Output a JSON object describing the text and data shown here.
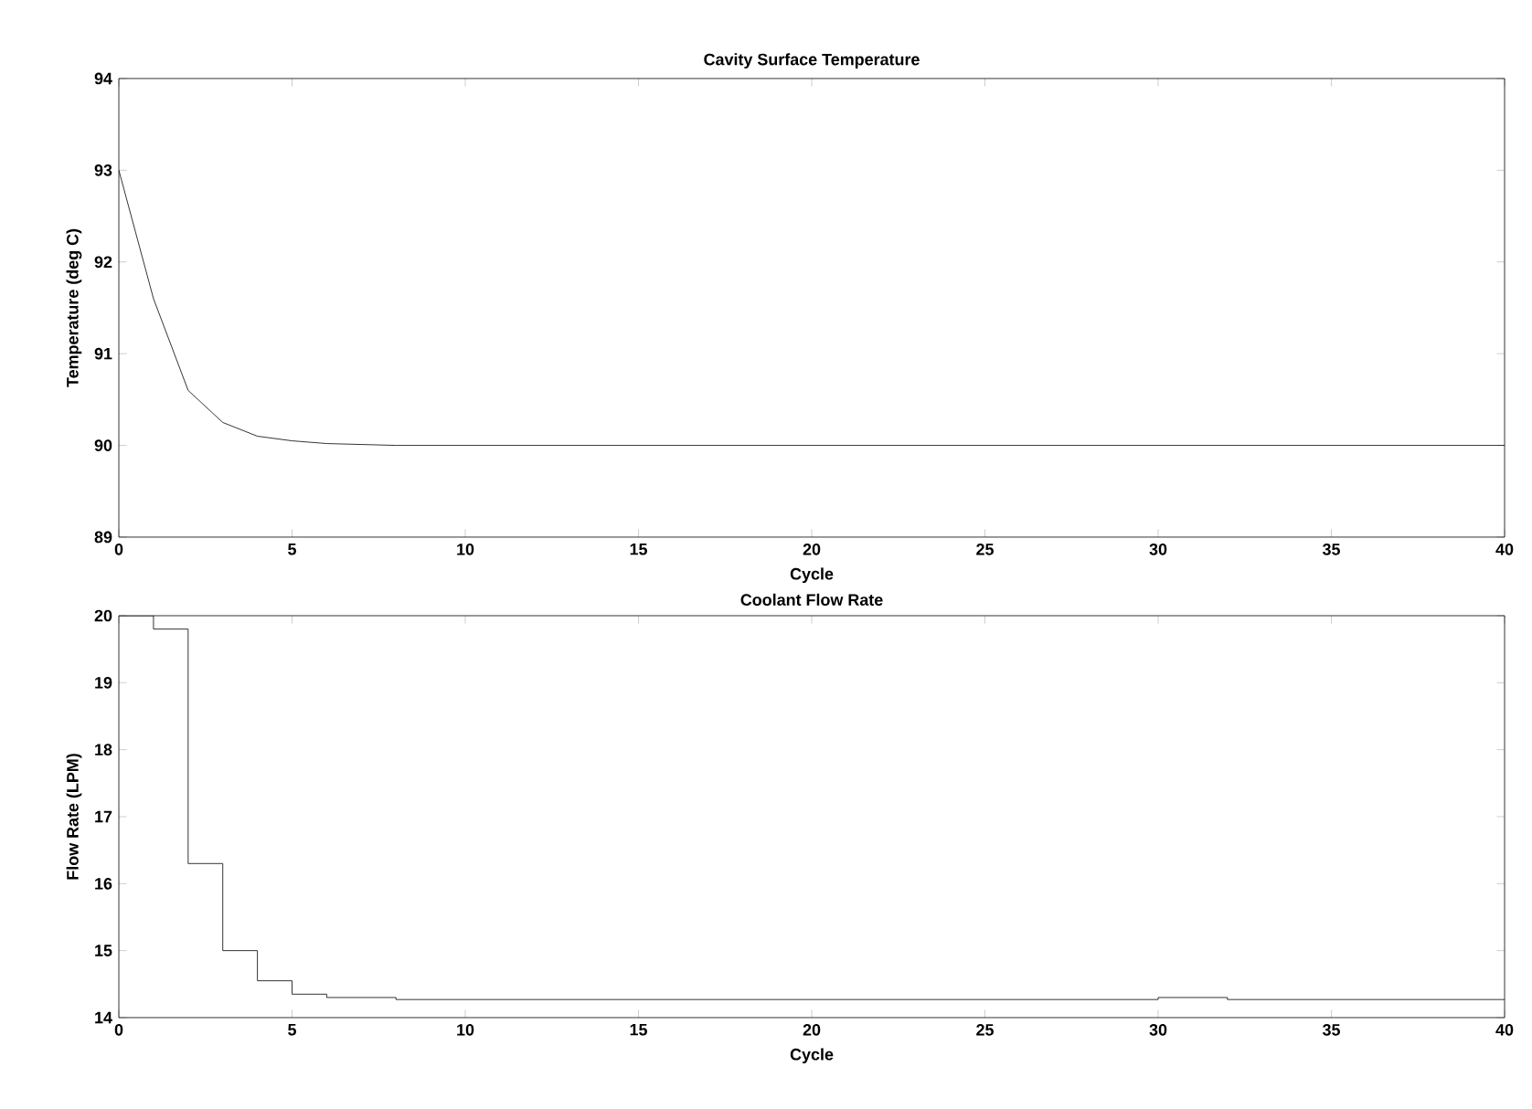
{
  "chart_data": [
    {
      "type": "line",
      "title": "Cavity Surface Temperature",
      "xlabel": "Cycle",
      "ylabel": "Temperature (deg C)",
      "xlim": [
        0,
        40
      ],
      "ylim": [
        89,
        94
      ],
      "xticks": [
        0,
        5,
        10,
        15,
        20,
        25,
        30,
        35,
        40
      ],
      "yticks": [
        89,
        90,
        91,
        92,
        93,
        94
      ],
      "x": [
        0,
        1,
        2,
        3,
        4,
        5,
        6,
        8,
        10,
        20,
        30,
        40
      ],
      "series": [
        {
          "color": "#000000",
          "values": [
            93,
            91.6,
            90.6,
            90.25,
            90.1,
            90.05,
            90.02,
            90,
            90,
            90,
            90,
            90
          ]
        }
      ]
    },
    {
      "type": "step",
      "title": "Coolant Flow Rate",
      "xlabel": "Cycle",
      "ylabel": "Flow Rate (LPM)",
      "xlim": [
        0,
        40
      ],
      "ylim": [
        14,
        20
      ],
      "xticks": [
        0,
        5,
        10,
        15,
        20,
        25,
        30,
        35,
        40
      ],
      "yticks": [
        14,
        15,
        16,
        17,
        18,
        19,
        20
      ],
      "x": [
        0,
        1,
        2,
        3,
        4,
        5,
        6,
        8,
        30,
        32,
        40
      ],
      "series": [
        {
          "color": "#000000",
          "values": [
            20,
            19.8,
            16.3,
            15.0,
            14.55,
            14.35,
            14.3,
            14.27,
            14.3,
            14.27,
            14.27
          ]
        }
      ]
    }
  ]
}
